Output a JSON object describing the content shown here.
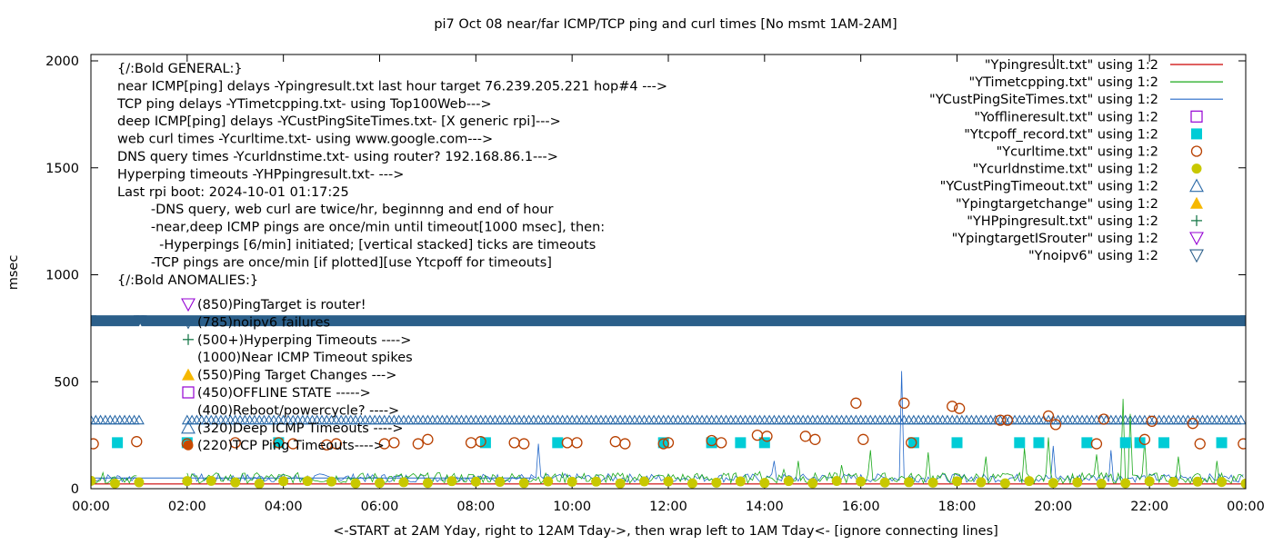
{
  "chart_data": {
    "type": "line",
    "title": "pi7 Oct 08  near/far ICMP/TCP ping and curl times [No msmt 1AM-2AM]",
    "xlabel": "<-START at 2AM Yday, right to 12AM Tday->, then wrap left to 1AM Tday<- [ignore connecting lines]",
    "ylabel": "msec",
    "xlim_hours": [
      0,
      24
    ],
    "ylim": [
      0,
      2050
    ],
    "x_ticks": [
      {
        "label": "00:00",
        "h": 0
      },
      {
        "label": "02:00",
        "h": 2
      },
      {
        "label": "04:00",
        "h": 4
      },
      {
        "label": "06:00",
        "h": 6
      },
      {
        "label": "08:00",
        "h": 8
      },
      {
        "label": "10:00",
        "h": 10
      },
      {
        "label": "12:00",
        "h": 12
      },
      {
        "label": "14:00",
        "h": 14
      },
      {
        "label": "16:00",
        "h": 16
      },
      {
        "label": "18:00",
        "h": 18
      },
      {
        "label": "20:00",
        "h": 20
      },
      {
        "label": "22:00",
        "h": 22
      },
      {
        "label": "00:00",
        "h": 24
      }
    ],
    "y_ticks": [
      {
        "label": "0",
        "v": 0
      },
      {
        "label": "500",
        "v": 500
      },
      {
        "label": "1000",
        "v": 1000
      },
      {
        "label": "1500",
        "v": 1500
      },
      {
        "label": "2000",
        "v": 2000
      }
    ],
    "annotations": [
      "{/:Bold GENERAL:}",
      "near ICMP[ping] delays -Ypingresult.txt last hour target 76.239.205.221 hop#4 --->",
      "TCP ping delays -YTimetcpping.txt- using Top100Web--->",
      "deep ICMP[ping] delays -YCustPingSiteTimes.txt- [X generic rpi]--->",
      "web curl times -Ycurltime.txt- using www.google.com--->",
      "DNS query times -Ycurldnstime.txt- using router? 192.168.86.1--->",
      "Hyperping timeouts -YHPpingresult.txt- --->",
      "Last rpi boot: 2024-10-01 01:17:25",
      "        -DNS query, web curl are twice/hr, beginnng and end of hour",
      "        -near,deep ICMP pings are once/min until timeout[1000 msec], then:",
      "          -Hyperpings [6/min] initiated; [vertical stacked] ticks are timeouts",
      "        -TCP pings are once/min [if plotted][use Ytcpoff for timeouts]",
      "{/:Bold ANOMALIES:}"
    ],
    "anomalies": [
      {
        "text": "(850)PingTarget is router!",
        "marker": "tri-down",
        "color": "#9400d3"
      },
      {
        "text": "(785)noipv6 failures",
        "marker": "tri-down",
        "color": "#2b5f8a"
      },
      {
        "text": "(500+)Hyperping Timeouts ---->",
        "marker": "plus",
        "color": "#1a7a4a"
      },
      {
        "text": "(1000)Near ICMP Timeout spikes",
        "marker": "none",
        "color": "#000000"
      },
      {
        "text": "(550)Ping Target Changes --->",
        "marker": "tri-up-filled",
        "color": "#f6b800"
      },
      {
        "text": "(450)OFFLINE STATE ----->",
        "marker": "square-open",
        "color": "#9400d3"
      },
      {
        "text": "(400)Reboot/powercycle? ---->",
        "marker": "none",
        "color": "#000000"
      },
      {
        "text": "(320)Deep ICMP Timeouts ---->",
        "marker": "tri-up-open",
        "color": "#2b6aa8"
      },
      {
        "text": "(220)TCP Ping Timeouts---->",
        "marker": "circle",
        "color": "#c84a00"
      }
    ],
    "legend_position": "top-right",
    "legend": [
      {
        "label": "\"Ypingresult.txt\" using 1:2",
        "style": "line",
        "color": "#cc0000"
      },
      {
        "label": "\"YTimetcpping.txt\" using 1:2",
        "style": "line",
        "color": "#1aa81a"
      },
      {
        "label": "\"YCustPingSiteTimes.txt\" using 1:2",
        "style": "line",
        "color": "#2468c8"
      },
      {
        "label": "\"Yofflineresult.txt\" using 1:2",
        "style": "square-open",
        "color": "#9400d3"
      },
      {
        "label": "\"Ytcpoff_record.txt\" using 1:2",
        "style": "square-filled",
        "color": "#00ccd6"
      },
      {
        "label": "\"Ycurltime.txt\" using 1:2",
        "style": "circle-open",
        "color": "#b84000"
      },
      {
        "label": "\"Ycurldnstime.txt\" using 1:2",
        "style": "circle-filled",
        "color": "#c8c800"
      },
      {
        "label": "\"YCustPingTimeout.txt\" using 1:2",
        "style": "tri-up-open",
        "color": "#2b6aa8"
      },
      {
        "label": "\"Ypingtargetchange\" using 1:2",
        "style": "tri-up-filled",
        "color": "#f6b800"
      },
      {
        "label": "\"YHPpingresult.txt\" using 1:2",
        "style": "plus",
        "color": "#1a7a4a"
      },
      {
        "label": "\"YpingtargetISrouter\" using 1:2",
        "style": "tri-down-open",
        "color": "#9400d3"
      },
      {
        "label": "\"Ynoipv6\" using 1:2",
        "style": "tri-down-open",
        "color": "#2b5f8a"
      }
    ],
    "series": {
      "ping_baseline": {
        "y": 22,
        "color": "#cc0000"
      },
      "tcp_ping_baseline": {
        "y_range": [
          25,
          75
        ],
        "color": "#1aa81a"
      },
      "deep_ping_baseline": {
        "y_range": [
          30,
          70
        ],
        "color": "#2468c8"
      },
      "tcp_spikes": [
        {
          "h": 13.9,
          "y": 80
        },
        {
          "h": 14.4,
          "y": 90
        },
        {
          "h": 14.7,
          "y": 130
        },
        {
          "h": 15.6,
          "y": 110
        },
        {
          "h": 16.2,
          "y": 180
        },
        {
          "h": 17.4,
          "y": 170
        },
        {
          "h": 18.6,
          "y": 150
        },
        {
          "h": 19.4,
          "y": 190
        },
        {
          "h": 19.9,
          "y": 240
        },
        {
          "h": 20.9,
          "y": 160
        },
        {
          "h": 21.45,
          "y": 420
        },
        {
          "h": 21.6,
          "y": 350
        },
        {
          "h": 21.9,
          "y": 230
        },
        {
          "h": 22.6,
          "y": 150
        },
        {
          "h": 23.4,
          "y": 130
        }
      ],
      "deep_spikes": [
        {
          "h": 9.3,
          "y": 210
        },
        {
          "h": 14.2,
          "y": 130
        },
        {
          "h": 16.85,
          "y": 550
        },
        {
          "h": 20.0,
          "y": 200
        },
        {
          "h": 21.2,
          "y": 180
        }
      ],
      "ytcpoff_points": [
        {
          "h": 0.55,
          "y": 215
        },
        {
          "h": 2.0,
          "y": 215
        },
        {
          "h": 3.9,
          "y": 215
        },
        {
          "h": 8.2,
          "y": 215
        },
        {
          "h": 9.7,
          "y": 215
        },
        {
          "h": 11.9,
          "y": 215
        },
        {
          "h": 12.9,
          "y": 215
        },
        {
          "h": 13.5,
          "y": 215
        },
        {
          "h": 14.0,
          "y": 215
        },
        {
          "h": 17.1,
          "y": 215
        },
        {
          "h": 18.0,
          "y": 215
        },
        {
          "h": 19.3,
          "y": 215
        },
        {
          "h": 19.7,
          "y": 215
        },
        {
          "h": 20.7,
          "y": 215
        },
        {
          "h": 21.5,
          "y": 215
        },
        {
          "h": 21.8,
          "y": 215
        },
        {
          "h": 22.3,
          "y": 215
        },
        {
          "h": 23.5,
          "y": 215
        }
      ],
      "curl_points": [
        {
          "h": 0.05,
          "y": 210
        },
        {
          "h": 0.95,
          "y": 220
        },
        {
          "h": 2.0,
          "y": 210
        },
        {
          "h": 3.0,
          "y": 215
        },
        {
          "h": 3.9,
          "y": 215
        },
        {
          "h": 4.2,
          "y": 210
        },
        {
          "h": 4.9,
          "y": 205
        },
        {
          "h": 5.1,
          "y": 210
        },
        {
          "h": 6.1,
          "y": 210
        },
        {
          "h": 6.3,
          "y": 215
        },
        {
          "h": 6.8,
          "y": 210
        },
        {
          "h": 7.0,
          "y": 230
        },
        {
          "h": 7.9,
          "y": 215
        },
        {
          "h": 8.1,
          "y": 220
        },
        {
          "h": 8.8,
          "y": 215
        },
        {
          "h": 9.0,
          "y": 210
        },
        {
          "h": 9.9,
          "y": 215
        },
        {
          "h": 10.1,
          "y": 215
        },
        {
          "h": 10.9,
          "y": 220
        },
        {
          "h": 11.1,
          "y": 210
        },
        {
          "h": 11.9,
          "y": 210
        },
        {
          "h": 12.0,
          "y": 215
        },
        {
          "h": 12.9,
          "y": 225
        },
        {
          "h": 13.1,
          "y": 215
        },
        {
          "h": 13.85,
          "y": 250
        },
        {
          "h": 14.05,
          "y": 245
        },
        {
          "h": 14.85,
          "y": 245
        },
        {
          "h": 15.05,
          "y": 230
        },
        {
          "h": 15.9,
          "y": 400
        },
        {
          "h": 16.05,
          "y": 230
        },
        {
          "h": 16.9,
          "y": 400
        },
        {
          "h": 17.05,
          "y": 215
        },
        {
          "h": 17.9,
          "y": 385
        },
        {
          "h": 18.05,
          "y": 375
        },
        {
          "h": 18.9,
          "y": 320
        },
        {
          "h": 19.05,
          "y": 320
        },
        {
          "h": 19.9,
          "y": 340
        },
        {
          "h": 20.05,
          "y": 300
        },
        {
          "h": 20.9,
          "y": 210
        },
        {
          "h": 21.05,
          "y": 325
        },
        {
          "h": 21.9,
          "y": 230
        },
        {
          "h": 22.05,
          "y": 315
        },
        {
          "h": 22.9,
          "y": 305
        },
        {
          "h": 23.05,
          "y": 210
        },
        {
          "h": 23.95,
          "y": 210
        }
      ],
      "dns_points_step_h": 0.5,
      "dns_points_y": 30,
      "dns_points_gaps_h": [
        [
          1.0,
          2.0
        ]
      ],
      "cust_ping_timeout_band": {
        "y": 320,
        "segments_h": [
          [
            0.0,
            1.0
          ],
          [
            2.0,
            24.0
          ]
        ]
      },
      "noipv6_band": {
        "y": 785,
        "segments_h": [
          [
            0.0,
            1.0
          ],
          [
            1.05,
            24.0
          ]
        ]
      }
    },
    "ypingresult_offset_line": {
      "y": 50,
      "from_h": 0,
      "to_h": 9.2,
      "color": "#2468c8"
    }
  }
}
